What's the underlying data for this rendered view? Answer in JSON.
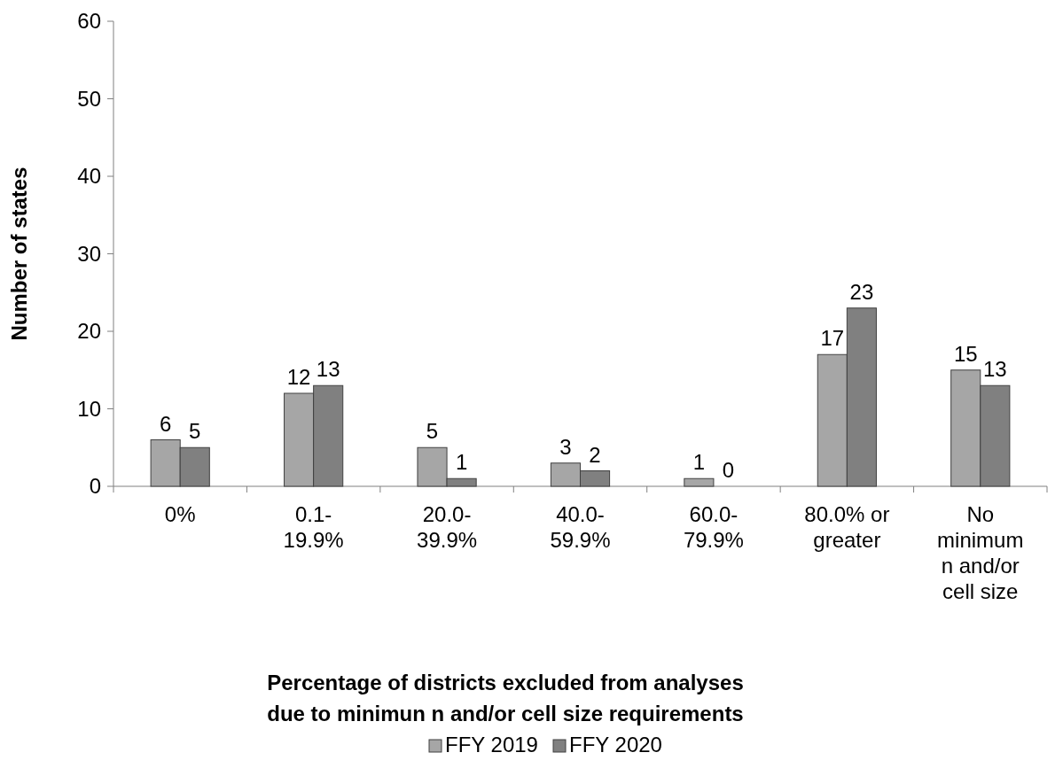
{
  "chart_data": {
    "type": "bar",
    "xlabel": "Percentage of districts excluded from analyses\ndue to minimun n and/or cell size requirements",
    "ylabel": "Number of states",
    "categories": [
      "0%",
      "0.1-\n19.9%",
      "20.0-\n39.9%",
      "40.0-\n59.9%",
      "60.0-\n79.9%",
      "80.0% or\ngreater",
      "No\nminimum\nn and/or\ncell size"
    ],
    "series": [
      {
        "name": "FFY 2019",
        "color": "#a6a6a6",
        "values": [
          6,
          12,
          5,
          3,
          1,
          17,
          15
        ]
      },
      {
        "name": "FFY 2020",
        "color": "#808080",
        "values": [
          5,
          13,
          1,
          2,
          0,
          23,
          13
        ]
      }
    ],
    "ylim": [
      0,
      60
    ],
    "yticks": [
      0,
      10,
      20,
      30,
      40,
      50,
      60
    ],
    "data_labels": true,
    "legend": "bottom",
    "grid": false
  }
}
